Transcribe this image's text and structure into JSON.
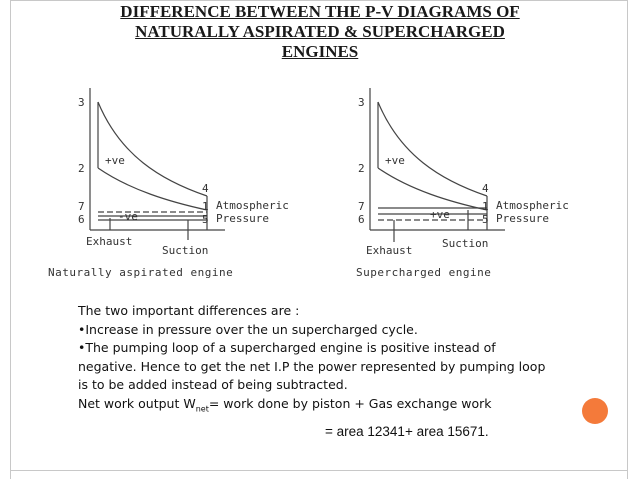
{
  "title": {
    "line1": "DIFFERENCE BETWEEN THE P-V DIAGRAMS OF",
    "line2": "NATURALLY ASPIRATED & SUPERCHARGED",
    "line3": "ENGINES"
  },
  "diagram_left": {
    "points": [
      "3",
      "2",
      "4",
      "7",
      "6",
      "1",
      "5"
    ],
    "loop_labels": [
      "+ve",
      "-ve"
    ],
    "atm_label1": "Atmospheric",
    "atm_label2": "Pressure",
    "exhaust": "Exhaust",
    "suction": "Suction",
    "caption": "Naturally aspirated engine"
  },
  "diagram_right": {
    "points": [
      "3",
      "2",
      "4",
      "7",
      "6",
      "1",
      "5"
    ],
    "loop_labels": [
      "+ve",
      "+ve"
    ],
    "atm_label1": "Atmospheric",
    "atm_label2": "Pressure",
    "exhaust": "Exhaust",
    "suction": "Suction",
    "caption": "Supercharged engine"
  },
  "text": {
    "line1": "The two important differences are :",
    "line2": "•Increase in pressure over the un supercharged cycle.",
    "line3": "•The pumping loop of a supercharged engine is positive instead of",
    "line4": "negative. Hence to get the net I.P the power represented by pumping loop",
    "line5": "is to be added instead of being subtracted.",
    "line6_pre": " Net work output W",
    "line6_sub": "net",
    "line6_post": "= work done by piston + Gas exchange work",
    "formula": "= area 12341+ area 15671."
  },
  "colors": {
    "accent_dot": "#f47a3a",
    "frame": "#c8c8c8"
  }
}
